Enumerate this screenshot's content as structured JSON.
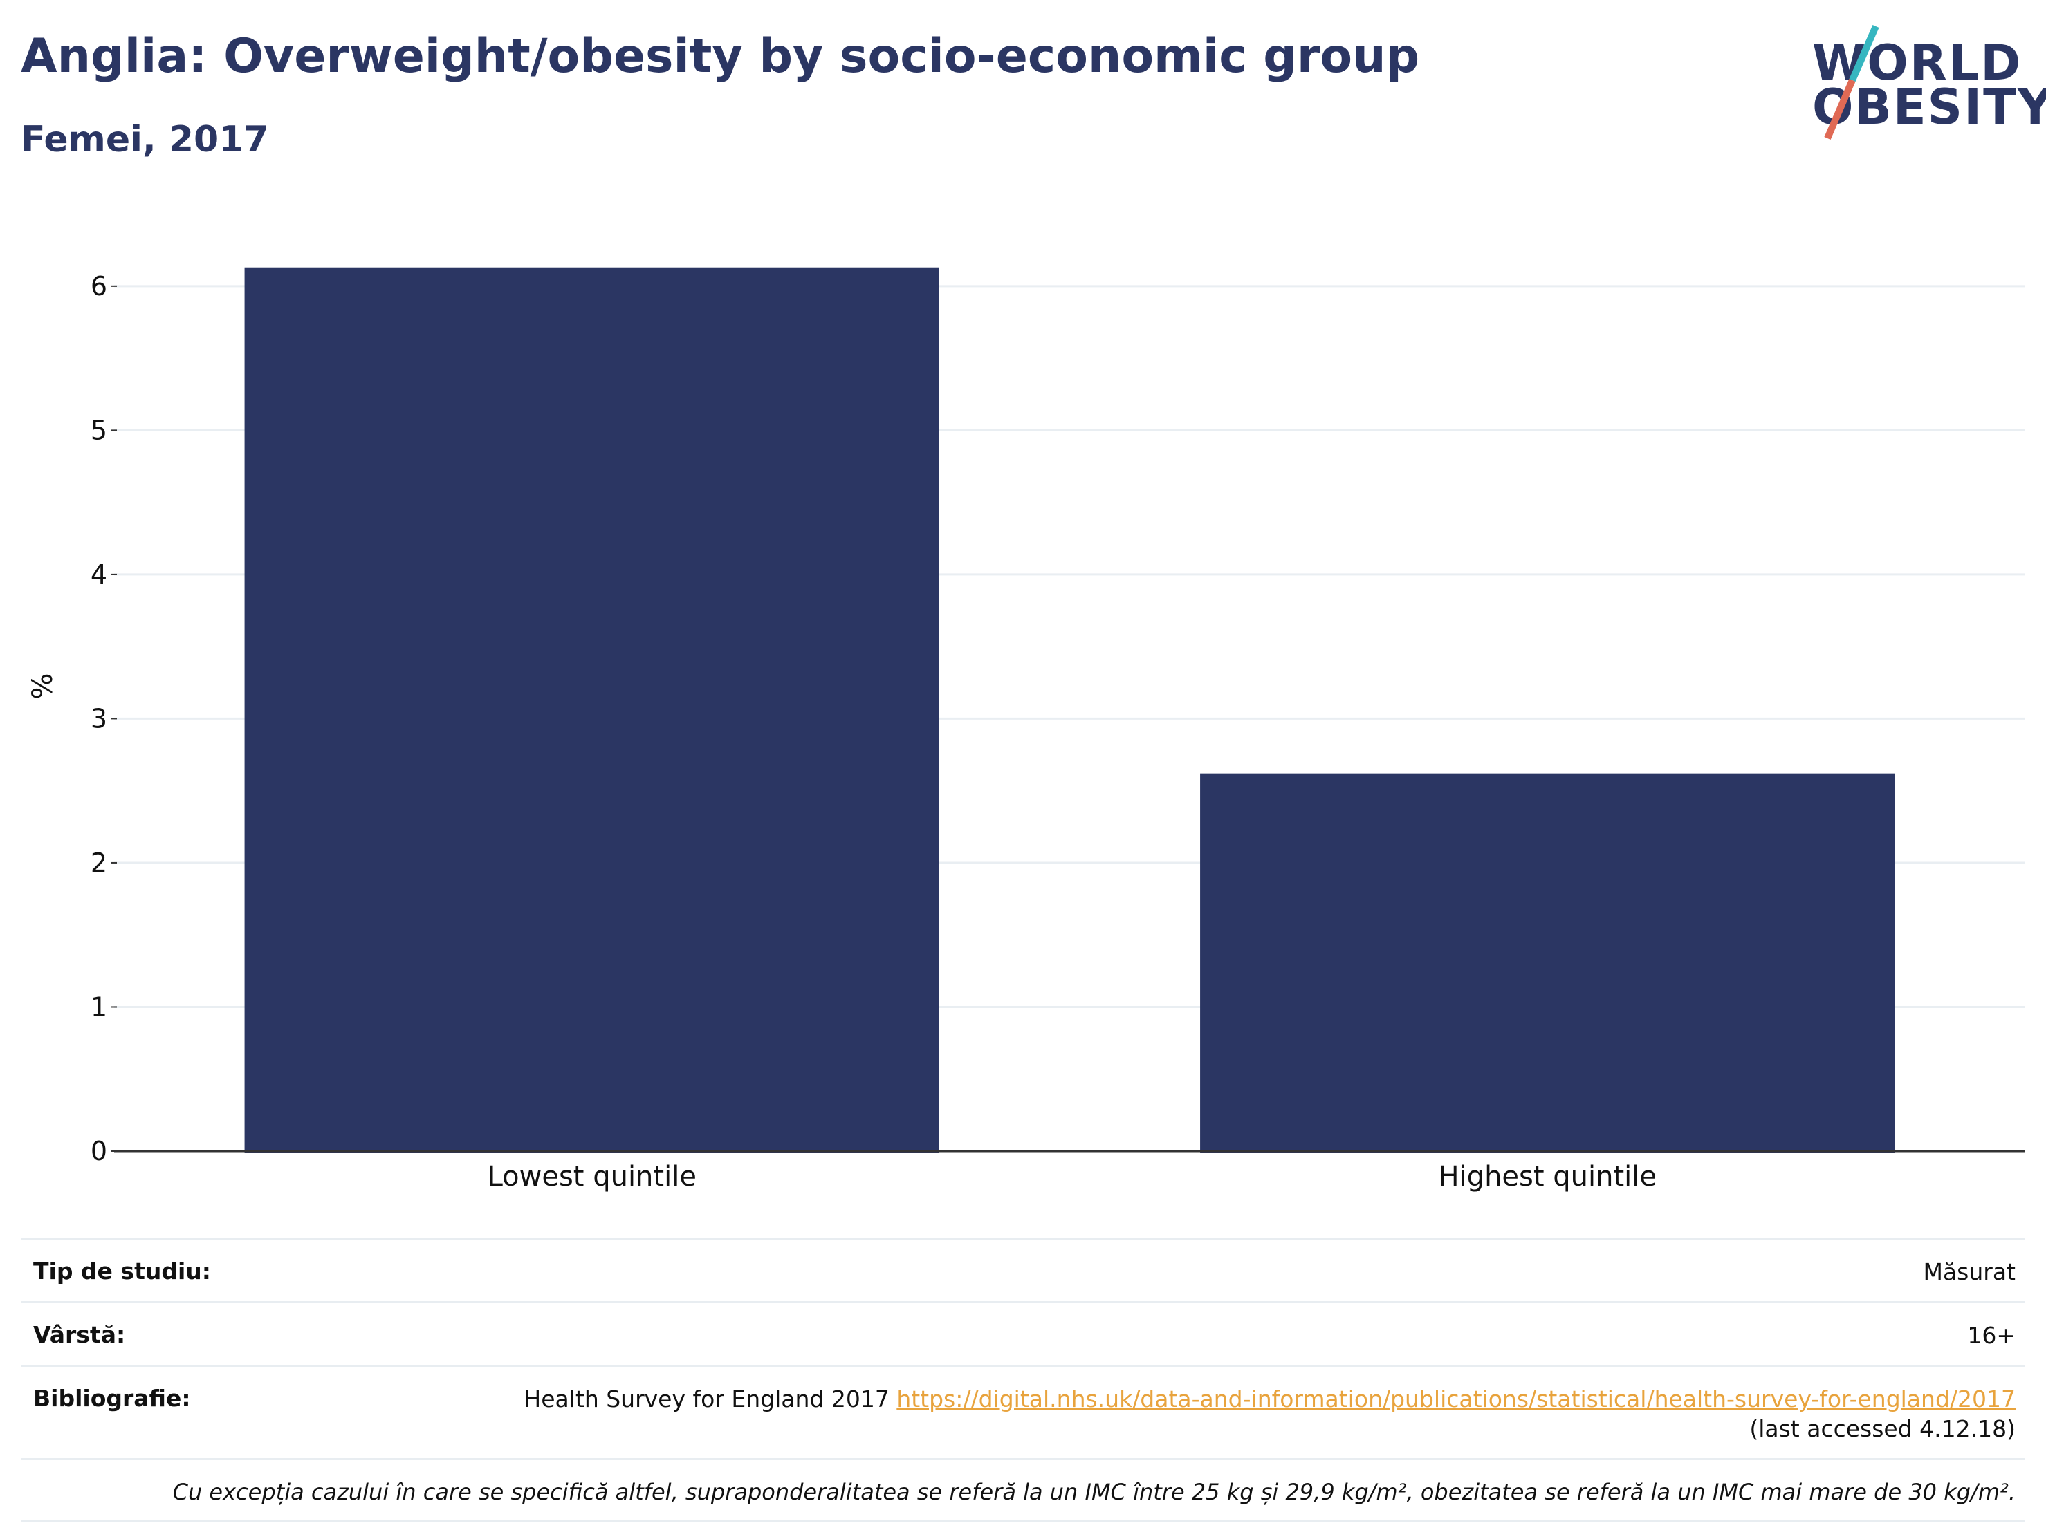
{
  "header": {
    "title": "Anglia: Overweight/obesity by socio-economic group",
    "subtitle": "Femei, 2017"
  },
  "logo": {
    "line1": "WORLD",
    "line2": "OBESITY",
    "slash_colors": [
      "#36b6c0",
      "#e06a55"
    ]
  },
  "chart_data": {
    "type": "bar",
    "categories": [
      "Lowest quintile",
      "Highest quintile"
    ],
    "values": [
      6.13,
      2.62
    ],
    "ylabel": "%",
    "xlabel": "",
    "ylim": [
      0,
      6.45
    ],
    "yticks": [
      0,
      1,
      2,
      3,
      4,
      5,
      6
    ],
    "grid": true,
    "bar_color": "#2b3663"
  },
  "meta": {
    "study_type_label": "Tip de studiu:",
    "study_type_value": "Măsurat",
    "age_label": "Vârstă:",
    "age_value": "16+",
    "biblio_label": "Bibliografie:",
    "biblio_source": "Health Survey for England 2017",
    "biblio_link": "https://digital.nhs.uk/data-and-information/publications/statistical/health-survey-for-england/2017",
    "biblio_accessed": "(last accessed 4.12.18)",
    "note": "Cu excepția cazului în care se specifică altfel, supraponderalitatea se referă la un IMC între 25 kg și 29,9 kg/m², obezitatea se referă la un IMC mai mare de 30 kg/m²."
  }
}
